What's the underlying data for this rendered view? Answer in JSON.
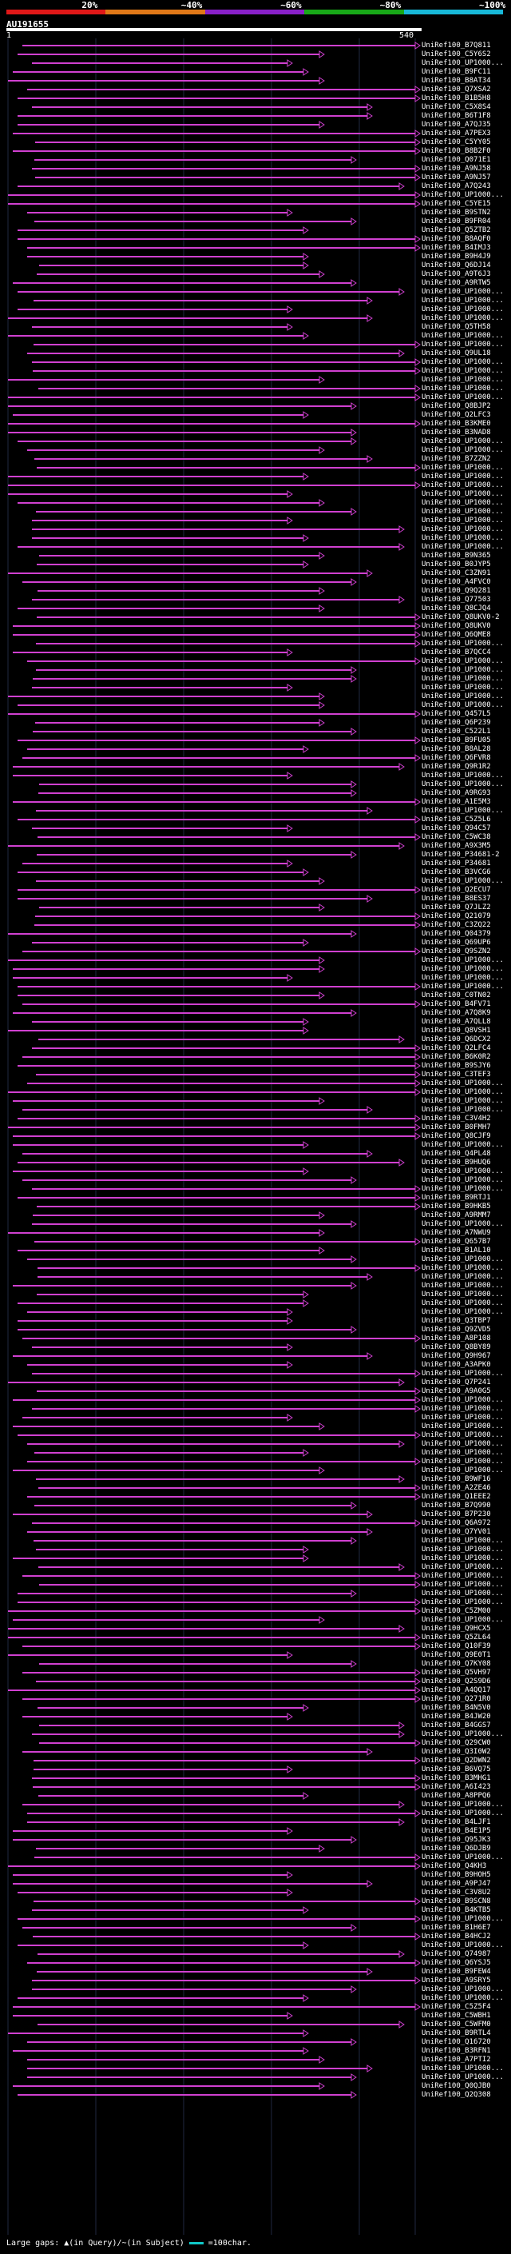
{
  "query": {
    "name": "AU191655",
    "start": "1",
    "end": "540",
    "length": 540
  },
  "scale": {
    "labels": [
      "20%",
      "~40%",
      "~60%",
      "~80%",
      "~100%"
    ],
    "colors": [
      "#e01818",
      "#e07818",
      "#8820c8",
      "#18a818",
      "#18b8d8"
    ]
  },
  "colors": {
    "hit_line": "#d040d0",
    "background": "#000000",
    "grid": "#202840",
    "query_bar": "#ffffff"
  },
  "hits": [
    "UniRef100_B7Q811",
    "UniRef100_C5Y6S2",
    "UniRef100_UP1000...",
    "UniRef100_B9FC11",
    "UniRef100_B8AT34",
    "UniRef100_Q7XSA2",
    "UniRef100_B1B5H8",
    "UniRef100_C5X8S4",
    "UniRef100_B6T1F8",
    "UniRef100_A7QJ35",
    "UniRef100_A7PEX3",
    "UniRef100_C5YY05",
    "UniRef100_B8B2F0",
    "UniRef100_Q071E1",
    "UniRef100_A9NJ58",
    "UniRef100_A9NJ57",
    "UniRef100_A7Q243",
    "UniRef100_UP1000...",
    "UniRef100_C5YE15",
    "UniRef100_B9STN2",
    "UniRef100_B9FR04",
    "UniRef100_Q5ZTB2",
    "UniRef100_B8AQF0",
    "UniRef100_B4IMJ3",
    "UniRef100_B9H4J9",
    "UniRef100_Q6DJ14",
    "UniRef100_A9T6J3",
    "UniRef100_A9RTW5",
    "UniRef100_UP1000...",
    "UniRef100_UP1000...",
    "UniRef100_UP1000...",
    "UniRef100_UP1000...",
    "UniRef100_Q5TH58",
    "UniRef100_UP1000...",
    "UniRef100_UP1000...",
    "UniRef100_Q9UL18",
    "UniRef100_UP1000...",
    "UniRef100_UP1000...",
    "UniRef100_UP1000...",
    "UniRef100_UP1000...",
    "UniRef100_UP1000...",
    "UniRef100_Q8BJP2",
    "UniRef100_Q2LFC3",
    "UniRef100_B3KME0",
    "UniRef100_B3NAD8",
    "UniRef100_UP1000...",
    "UniRef100_UP1000...",
    "UniRef100_B7ZZN2",
    "UniRef100_UP1000...",
    "UniRef100_UP1000...",
    "UniRef100_UP1000...",
    "UniRef100_UP1000...",
    "UniRef100_UP1000...",
    "UniRef100_UP1000...",
    "UniRef100_UP1000...",
    "UniRef100_UP1000...",
    "UniRef100_UP1000...",
    "UniRef100_UP1000...",
    "UniRef100_B9N365",
    "UniRef100_B0JYP5",
    "UniRef100_C3ZN91",
    "UniRef100_A4FVC0",
    "UniRef100_Q9Q281",
    "UniRef100_Q77503",
    "UniRef100_Q8CJQ4",
    "UniRef100_Q8UKV0-2",
    "UniRef100_Q8UKV0",
    "UniRef100_Q6QME8",
    "UniRef100_UP1000...",
    "UniRef100_B7QCC4",
    "UniRef100_UP1000...",
    "UniRef100_UP1000...",
    "UniRef100_UP1000...",
    "UniRef100_UP1000...",
    "UniRef100_UP1000...",
    "UniRef100_UP1000...",
    "UniRef100_Q457L5",
    "UniRef100_Q6P239",
    "UniRef100_C522L1",
    "UniRef100_B9FU05",
    "UniRef100_B8AL28",
    "UniRef100_Q6FVR8",
    "UniRef100_Q9R1R2",
    "UniRef100_UP1000...",
    "UniRef100_UP1000...",
    "UniRef100_A9RG93",
    "UniRef100_A1E5M3",
    "UniRef100_UP1000...",
    "UniRef100_C5Z5L6",
    "UniRef100_Q94C57",
    "UniRef100_C5WC38",
    "UniRef100_A9X3M5",
    "UniRef100_P34681-2",
    "UniRef100_P34681",
    "UniRef100_B3VCG6",
    "UniRef100_UP1000...",
    "UniRef100_Q2ECU7",
    "UniRef100_B8ES37",
    "UniRef100_Q7JLZ2",
    "UniRef100_Q21079",
    "UniRef100_C3ZQ22",
    "UniRef100_Q04379",
    "UniRef100_Q69UP6",
    "UniRef100_Q9SZN2",
    "UniRef100_UP1000...",
    "UniRef100_UP1000...",
    "UniRef100_UP1000...",
    "UniRef100_UP1000...",
    "UniRef100_C0TN02",
    "UniRef100_B4FV71",
    "UniRef100_A7Q8K9",
    "UniRef100_A7QLL8",
    "UniRef100_Q8VSH1",
    "UniRef100_Q6DCX2",
    "UniRef100_Q2LFC4",
    "UniRef100_B6K0R2",
    "UniRef100_B9SJY6",
    "UniRef100_C3TEF3",
    "UniRef100_UP1000...",
    "UniRef100_UP1000...",
    "UniRef100_UP1000...",
    "UniRef100_UP1000...",
    "UniRef100_C3V4H2",
    "UniRef100_B0FMH7",
    "UniRef100_Q8CJF9",
    "UniRef100_UP1000...",
    "UniRef100_Q4PL48",
    "UniRef100_B9HUQ6",
    "UniRef100_UP1000...",
    "UniRef100_UP1000...",
    "UniRef100_UP1000...",
    "UniRef100_B9RTJ1",
    "UniRef100_B9HKB5",
    "UniRef100_A9RMM7",
    "UniRef100_UP1000...",
    "UniRef100_A7NWU9",
    "UniRef100_Q657B7",
    "UniRef100_B1AL10",
    "UniRef100_UP1000...",
    "UniRef100_UP1000...",
    "UniRef100_UP1000...",
    "UniRef100_UP1000...",
    "UniRef100_UP1000...",
    "UniRef100_UP1000...",
    "UniRef100_UP1000...",
    "UniRef100_Q3TBP7",
    "UniRef100_Q9ZVD5",
    "UniRef100_A8P108",
    "UniRef100_Q8BY89",
    "UniRef100_Q9H967",
    "UniRef100_A3APK0",
    "UniRef100_UP1000...",
    "UniRef100_Q7P241",
    "UniRef100_A9A0G5",
    "UniRef100_UP1000...",
    "UniRef100_UP1000...",
    "UniRef100_UP1000...",
    "UniRef100_UP1000...",
    "UniRef100_UP1000...",
    "UniRef100_UP1000...",
    "UniRef100_UP1000...",
    "UniRef100_UP1000...",
    "UniRef100_UP1000...",
    "UniRef100_B9WF16",
    "UniRef100_A2ZE46",
    "UniRef100_Q1EEE2",
    "UniRef100_B7Q990",
    "UniRef100_B7P230",
    "UniRef100_Q6A972",
    "UniRef100_Q7YV01",
    "UniRef100_UP1000...",
    "UniRef100_UP1000...",
    "UniRef100_UP1000...",
    "UniRef100_UP1000...",
    "UniRef100_UP1000...",
    "UniRef100_UP1000...",
    "UniRef100_UP1000...",
    "UniRef100_UP1000...",
    "UniRef100_C5ZM00",
    "UniRef100_UP1000...",
    "UniRef100_Q9HCX5",
    "UniRef100_Q5ZL64",
    "UniRef100_Q10F39",
    "UniRef100_Q9E0T1",
    "UniRef100_Q7KY08",
    "UniRef100_Q5VH97",
    "UniRef100_Q2S9D6",
    "UniRef100_A4QQ17",
    "UniRef100_Q271R0",
    "UniRef100_B4N5V0",
    "UniRef100_B4JW20",
    "UniRef100_B4GGS7",
    "UniRef100_UP1000...",
    "UniRef100_Q29CW0",
    "UniRef100_Q3I0W2",
    "UniRef100_Q2DWN2",
    "UniRef100_B6VQ75",
    "UniRef100_B3MHG1",
    "UniRef100_A6I423",
    "UniRef100_A8PPQ6",
    "UniRef100_UP1000...",
    "UniRef100_UP1000...",
    "UniRef100_B4LJF1",
    "UniRef100_B4E1P5",
    "UniRef100_Q95JK3",
    "UniRef100_Q6DJB9",
    "UniRef100_UP1000...",
    "UniRef100_Q4KH3",
    "UniRef100_B9HOH5",
    "UniRef100_A9PJ47",
    "UniRef100_C3V8U2",
    "UniRef100_B9SCN8",
    "UniRef100_B4KTB5",
    "UniRef100_UP1000...",
    "UniRef100_B1H6E7",
    "UniRef100_B4HCJ2",
    "UniRef100_UP1000...",
    "UniRef100_Q74987",
    "UniRef100_Q6YSJ5",
    "UniRef100_B9FEW4",
    "UniRef100_A9SRY5",
    "UniRef100_UP1000...",
    "UniRef100_UP1000...",
    "UniRef100_C5Z5F4",
    "UniRef100_C5WBH1",
    "UniRef100_C5WFM0",
    "UniRef100_B9RTL4",
    "UniRef100_Q16720",
    "UniRef100_B3RFN1",
    "UniRef100_A7PTI2",
    "UniRef100_UP1000...",
    "UniRef100_UP1000...",
    "UniRef100_Q0QJB0",
    "UniRef100_Q2Q308"
  ],
  "legend": {
    "text": "Large gaps: ▲(in Query)/~(in Subject)",
    "scale_text": "=100char."
  }
}
